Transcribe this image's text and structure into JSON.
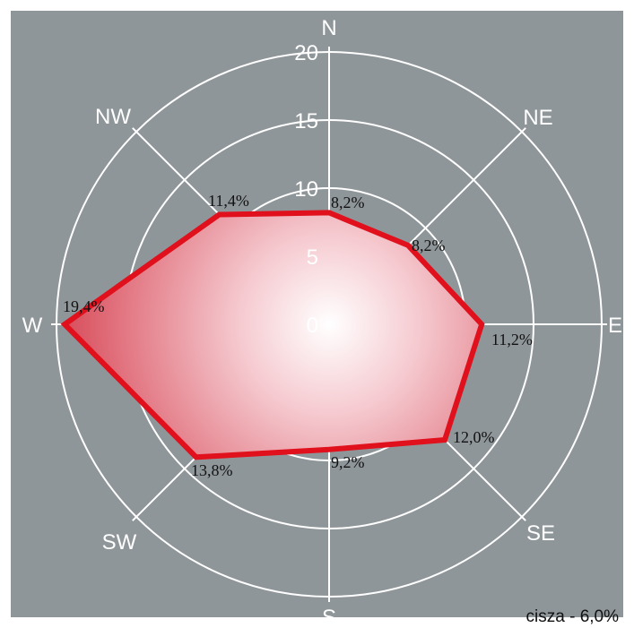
{
  "chart_data": {
    "type": "radar",
    "title": "",
    "directions": [
      "N",
      "NE",
      "E",
      "SE",
      "S",
      "SW",
      "W",
      "NW"
    ],
    "values": [
      8.2,
      8.2,
      11.2,
      12.0,
      9.2,
      13.8,
      19.4,
      11.4
    ],
    "value_labels": [
      "8,2%",
      "8,2%",
      "11,2%",
      "12,0%",
      "9,2%",
      "13,8%",
      "19,4%",
      "11,4%"
    ],
    "radial_ticks": [
      0,
      5,
      10,
      15,
      20
    ],
    "radial_range": [
      0,
      20
    ],
    "grid": true,
    "calm_label": "cisza - 6,0%",
    "colors": {
      "background": "#8f9699",
      "grid": "#ffffff",
      "outline": "#e0101c",
      "fill_center": "#ffffff",
      "fill_edge": "#d9505e"
    }
  }
}
